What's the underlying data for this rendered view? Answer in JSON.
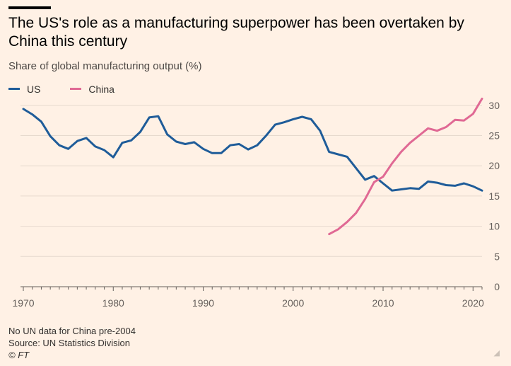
{
  "title": "The US's role as a manufacturing superpower has been overtaken by China this century",
  "subtitle": "Share of global manufacturing output (%)",
  "footer": {
    "note": "No UN data for China pre-2004",
    "source": "Source: UN Statistics Division",
    "credit": "© FT"
  },
  "chart_data": {
    "type": "line",
    "ylim": [
      0,
      30
    ],
    "xlim": [
      1970,
      2021
    ],
    "x_ticks": [
      1970,
      1980,
      1990,
      2000,
      2010,
      2020
    ],
    "y_ticks": [
      0,
      5,
      10,
      15,
      20,
      25,
      30
    ],
    "grid": "horizontal",
    "legend_position": "top-left",
    "series": [
      {
        "name": "US",
        "color": "#1F5C99",
        "x": [
          1970,
          1971,
          1972,
          1973,
          1974,
          1975,
          1976,
          1977,
          1978,
          1979,
          1980,
          1981,
          1982,
          1983,
          1984,
          1985,
          1986,
          1987,
          1988,
          1989,
          1990,
          1991,
          1992,
          1993,
          1994,
          1995,
          1996,
          1997,
          1998,
          1999,
          2000,
          2001,
          2002,
          2003,
          2004,
          2005,
          2006,
          2007,
          2008,
          2009,
          2010,
          2011,
          2012,
          2013,
          2014,
          2015,
          2016,
          2017,
          2018,
          2019,
          2020,
          2021
        ],
        "y": [
          29.4,
          28.5,
          27.3,
          24.9,
          23.4,
          22.8,
          24.1,
          24.6,
          23.2,
          22.6,
          21.4,
          23.8,
          24.2,
          25.6,
          28.0,
          28.2,
          25.2,
          24.0,
          23.6,
          23.9,
          22.8,
          22.1,
          22.1,
          23.4,
          23.6,
          22.7,
          23.4,
          25.0,
          26.8,
          27.2,
          27.7,
          28.1,
          27.7,
          25.8,
          22.3,
          21.9,
          21.5,
          19.6,
          17.7,
          18.3,
          17.1,
          15.9,
          16.1,
          16.3,
          16.2,
          17.4,
          17.2,
          16.8,
          16.7,
          17.1,
          16.6,
          15.9
        ]
      },
      {
        "name": "China",
        "color": "#E06994",
        "x": [
          2004,
          2005,
          2006,
          2007,
          2008,
          2009,
          2010,
          2011,
          2012,
          2013,
          2014,
          2015,
          2016,
          2017,
          2018,
          2019,
          2020,
          2021
        ],
        "y": [
          8.7,
          9.5,
          10.7,
          12.2,
          14.5,
          17.3,
          18.2,
          20.4,
          22.3,
          23.8,
          25.0,
          26.2,
          25.8,
          26.4,
          27.6,
          27.5,
          28.6,
          31.1
        ]
      }
    ]
  }
}
